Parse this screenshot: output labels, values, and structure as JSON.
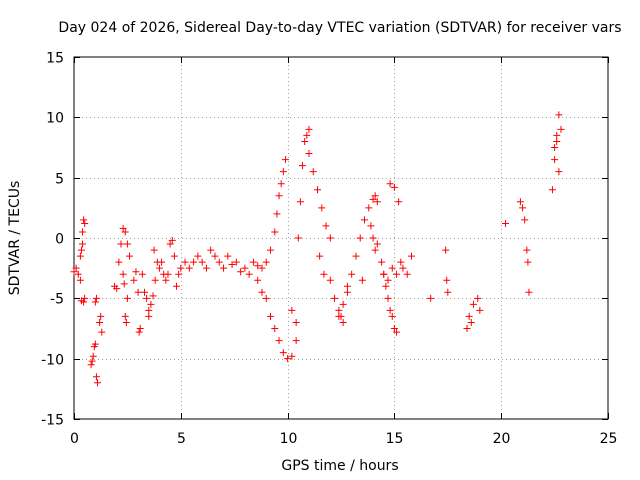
{
  "chart_data": {
    "type": "scatter",
    "title": "Day 024 of 2026, Sidereal Day-to-day VTEC variation (SDTVAR) for receiver vars",
    "xlabel": "GPS time / hours",
    "ylabel": "SDTVAR / TECUs",
    "xlim": [
      0,
      25
    ],
    "ylim": [
      -15,
      15
    ],
    "xticks": [
      0,
      5,
      10,
      15,
      20,
      25
    ],
    "yticks": [
      -15,
      -10,
      -5,
      0,
      5,
      10,
      15
    ],
    "xtick_labels": [
      "0",
      "5",
      "10",
      "15",
      "20",
      "25"
    ],
    "ytick_labels": [
      "-15",
      "-10",
      "-5",
      "0",
      "5",
      "10",
      "15"
    ],
    "grid": true,
    "marker": "plus",
    "series": [
      {
        "name": "SDTVAR",
        "color": "#ff0000",
        "x": [
          0.0,
          0.1,
          0.2,
          0.3,
          0.35,
          0.4,
          0.45,
          0.5,
          0.4,
          0.3,
          0.35,
          0.45,
          0.5,
          0.8,
          0.85,
          0.9,
          0.95,
          1.0,
          1.05,
          1.1,
          1.2,
          1.25,
          1.3,
          1.0,
          1.05,
          1.9,
          2.0,
          2.1,
          2.2,
          2.3,
          2.4,
          2.5,
          2.6,
          2.4,
          2.5,
          2.3,
          2.35,
          2.45,
          2.8,
          2.9,
          3.0,
          3.05,
          3.1,
          3.2,
          3.3,
          3.4,
          3.5,
          3.6,
          3.7,
          3.8,
          3.9,
          3.75,
          3.5,
          4.0,
          4.1,
          4.2,
          4.3,
          4.4,
          4.5,
          4.6,
          4.7,
          4.8,
          4.9,
          5.0,
          5.2,
          5.4,
          5.6,
          5.8,
          6.0,
          6.2,
          6.4,
          6.6,
          6.8,
          7.0,
          7.2,
          7.4,
          7.6,
          7.8,
          8.0,
          8.2,
          8.4,
          8.6,
          8.8,
          9.0,
          8.6,
          8.8,
          9.0,
          9.2,
          9.4,
          9.6,
          9.8,
          10.0,
          10.2,
          10.4,
          9.2,
          9.4,
          9.5,
          9.6,
          9.7,
          9.8,
          9.9,
          10.2,
          10.4,
          10.5,
          10.6,
          10.7,
          10.8,
          10.9,
          11.0,
          11.0,
          11.2,
          11.4,
          11.6,
          11.8,
          12.0,
          11.5,
          11.7,
          12.0,
          12.2,
          12.4,
          12.5,
          12.6,
          12.8,
          13.0,
          13.2,
          13.4,
          13.6,
          13.8,
          14.0,
          14.1,
          14.2,
          12.4,
          12.6,
          12.8,
          13.9,
          14.0,
          14.1,
          13.5,
          14.2,
          14.4,
          14.5,
          14.6,
          14.7,
          14.8,
          14.9,
          15.0,
          15.1,
          14.8,
          15.0,
          15.2,
          15.4,
          15.6,
          15.8,
          14.5,
          14.7,
          14.9,
          15.1,
          15.3,
          16.7,
          17.4,
          17.45,
          17.5,
          18.4,
          18.5,
          18.6,
          18.7,
          18.9,
          19.0,
          20.2,
          20.9,
          21.0,
          21.1,
          21.2,
          21.25,
          21.3,
          22.4,
          22.5,
          22.6,
          22.7,
          22.8,
          22.5,
          22.6,
          22.7
        ],
        "y": [
          -2.8,
          -2.5,
          -3.0,
          -3.5,
          -1.0,
          0.5,
          1.5,
          1.2,
          -0.5,
          -1.5,
          -5.2,
          -5.3,
          -5.0,
          -10.5,
          -10.2,
          -9.8,
          -9.0,
          -8.8,
          -11.5,
          -12.0,
          -7.0,
          -6.5,
          -7.8,
          -5.3,
          -5.0,
          -4.0,
          -4.2,
          -2.0,
          -0.5,
          0.8,
          0.5,
          -0.5,
          -1.5,
          -6.5,
          -5.0,
          -3.0,
          -3.8,
          -7.0,
          -3.5,
          -2.8,
          -4.5,
          -7.8,
          -7.5,
          -3.0,
          -4.5,
          -5.0,
          -6.0,
          -5.5,
          -4.8,
          -3.5,
          -2.0,
          -1.0,
          -6.5,
          -2.5,
          -2.0,
          -3.0,
          -3.5,
          -3.0,
          -0.5,
          -0.2,
          -1.5,
          -4.0,
          -3.0,
          -2.5,
          -2.0,
          -2.5,
          -2.0,
          -1.5,
          -2.0,
          -2.5,
          -1.0,
          -1.5,
          -2.0,
          -2.5,
          -1.5,
          -2.2,
          -2.0,
          -2.8,
          -2.5,
          -3.0,
          -2.0,
          -2.3,
          -2.5,
          -2.0,
          -3.5,
          -4.5,
          -5.0,
          -6.5,
          -7.5,
          -8.5,
          -9.5,
          -10.0,
          -9.8,
          -8.5,
          -1.0,
          0.5,
          2.0,
          3.5,
          4.5,
          5.5,
          6.5,
          -6.0,
          -7.0,
          0.0,
          3.0,
          6.0,
          8.0,
          8.5,
          9.0,
          7.0,
          5.5,
          4.0,
          2.5,
          1.0,
          0.0,
          -1.5,
          -3.0,
          -3.5,
          -5.0,
          -6.0,
          -6.5,
          -5.5,
          -4.5,
          -3.0,
          -1.5,
          0.0,
          1.5,
          2.5,
          3.2,
          3.5,
          3.0,
          -6.5,
          -7.0,
          -4.0,
          1.0,
          0.0,
          -1.0,
          -3.5,
          -0.5,
          -2.0,
          -3.0,
          -4.0,
          -5.0,
          -6.0,
          -6.5,
          -7.5,
          -7.8,
          4.5,
          4.2,
          3.0,
          -2.5,
          -3.0,
          -1.5,
          -3.0,
          -3.5,
          -2.5,
          -3.0,
          -2.0,
          -5.0,
          -1.0,
          -3.5,
          -4.5,
          -7.5,
          -6.5,
          -7.0,
          -5.5,
          -5.0,
          -6.0,
          1.2,
          3.0,
          2.5,
          1.5,
          -1.0,
          -2.0,
          -4.5,
          4.0,
          6.5,
          8.5,
          10.2,
          9.0,
          7.5,
          8.0,
          5.5
        ]
      }
    ]
  }
}
